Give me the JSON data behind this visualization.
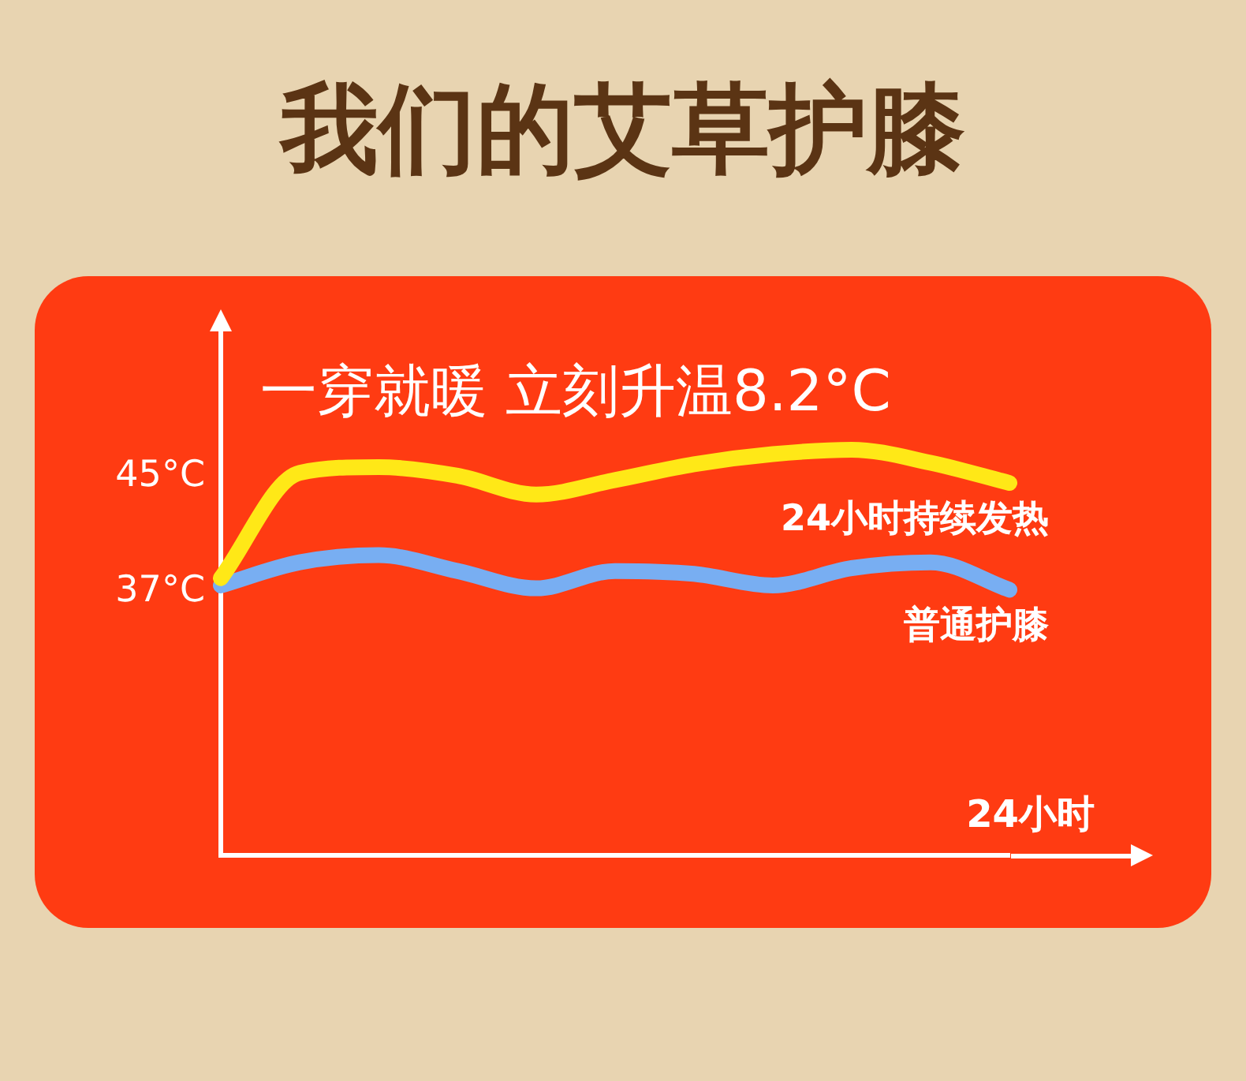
{
  "chart_data": {
    "type": "line",
    "title": "我们的艾草护膝",
    "xlabel": "24小时",
    "annotations": [
      "一穿就暖 立刻升温8.2°C"
    ],
    "categories": [
      null,
      null,
      null,
      null,
      null,
      null,
      null,
      null,
      null,
      null,
      null
    ],
    "series": [
      {
        "name": "24小时持续发热",
        "color": "#ffe817",
        "values": [
          37.5,
          44.8,
          45.2,
          44.6,
          43.3,
          44.3,
          45.4,
          46.1,
          46.4,
          45.5,
          44.1
        ]
      },
      {
        "name": "普通护膝",
        "color": "#78aef2",
        "values": [
          37,
          38.6,
          39.1,
          38.0,
          36.8,
          38.0,
          37.8,
          37.0,
          38.2,
          38.6,
          36.7
        ]
      }
    ],
    "ylim": [
      18.3,
      54.6
    ],
    "yticks": [
      {
        "value": 45,
        "label": "45°C"
      },
      {
        "value": 37,
        "label": "37°C"
      }
    ],
    "grid": false,
    "legend": false,
    "tick_labels": "y"
  }
}
